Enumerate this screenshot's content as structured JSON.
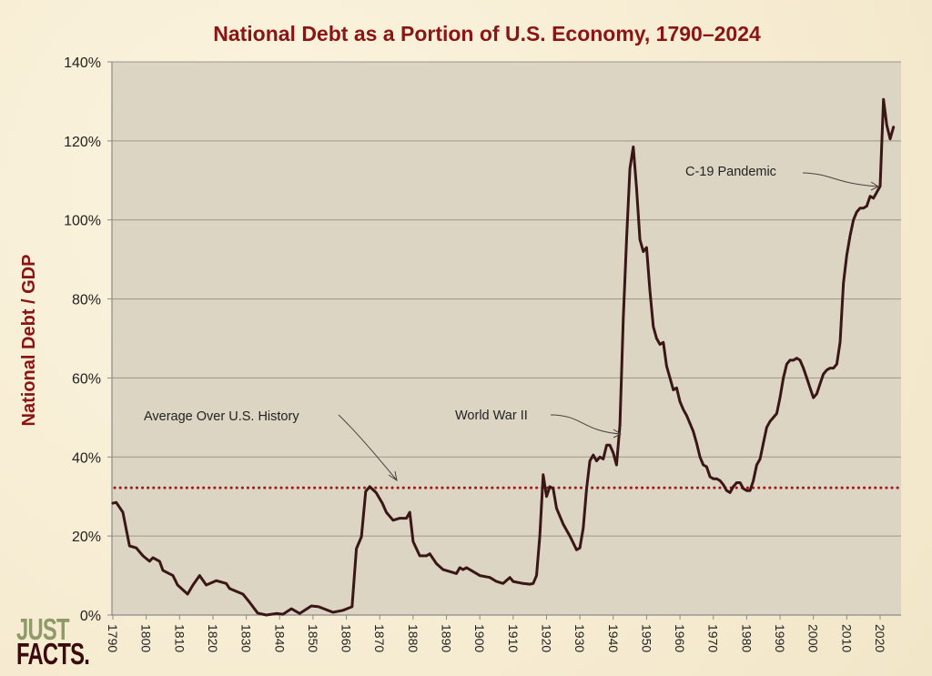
{
  "chart_data": {
    "type": "line",
    "title": "National Debt as a Portion of U.S. Economy, 1790–2024",
    "xlabel": "",
    "ylabel": "National Debt / GDP",
    "xlim": [
      1790,
      2026
    ],
    "ylim": [
      0,
      140
    ],
    "x_ticks": [
      1790,
      1800,
      1810,
      1820,
      1830,
      1840,
      1850,
      1860,
      1870,
      1880,
      1890,
      1900,
      1910,
      1920,
      1930,
      1940,
      1950,
      1960,
      1970,
      1980,
      1990,
      2000,
      2010,
      2020
    ],
    "y_ticks": [
      0,
      20,
      40,
      60,
      80,
      100,
      120,
      140
    ],
    "y_tick_labels": [
      "0%",
      "20%",
      "40%",
      "60%",
      "80%",
      "100%",
      "120%",
      "140%"
    ],
    "grid": "horizontal",
    "average_line": {
      "value": 32.2,
      "label": "Average Over U.S. History",
      "color": "#a01818"
    },
    "annotations": [
      {
        "text": "Average Over U.S. History",
        "points_to_year": 1876,
        "points_to_value": 34
      },
      {
        "text": "World War II",
        "points_to_year": 1941,
        "points_to_value": 45
      },
      {
        "text": "C-19 Pandemic",
        "points_to_year": 2020,
        "points_to_value": 108
      }
    ],
    "series": [
      {
        "color": "#3a1616",
        "points": [
          [
            1790,
            28.3
          ],
          [
            1791,
            28.5
          ],
          [
            1793,
            26
          ],
          [
            1795,
            17.5
          ],
          [
            1797,
            17
          ],
          [
            1799,
            15
          ],
          [
            1801,
            13.6
          ],
          [
            1802,
            14.5
          ],
          [
            1804,
            13.6
          ],
          [
            1805,
            11.3
          ],
          [
            1808,
            10
          ],
          [
            1809.4,
            7.6
          ],
          [
            1812.4,
            5.3
          ],
          [
            1814,
            7.6
          ],
          [
            1816,
            10
          ],
          [
            1818,
            7.6
          ],
          [
            1821,
            8.7
          ],
          [
            1824,
            8
          ],
          [
            1825,
            6.7
          ],
          [
            1829,
            5.3
          ],
          [
            1831,
            3.2
          ],
          [
            1833.4,
            0.5
          ],
          [
            1836,
            0
          ],
          [
            1839,
            0.4
          ],
          [
            1841,
            0.2
          ],
          [
            1843.5,
            1.6
          ],
          [
            1846,
            0.4
          ],
          [
            1849.5,
            2.3
          ],
          [
            1851.7,
            2.1
          ],
          [
            1856,
            0.7
          ],
          [
            1859,
            1.2
          ],
          [
            1861.7,
            2.1
          ],
          [
            1863,
            16.8
          ],
          [
            1864.5,
            19.8
          ],
          [
            1865.8,
            31.3
          ],
          [
            1867,
            32.5
          ],
          [
            1868.9,
            31
          ],
          [
            1870.8,
            28.3
          ],
          [
            1872,
            26
          ],
          [
            1874,
            24
          ],
          [
            1876,
            24.5
          ],
          [
            1878,
            24.5
          ],
          [
            1879,
            26
          ],
          [
            1880,
            18.6
          ],
          [
            1882,
            15
          ],
          [
            1884,
            15
          ],
          [
            1885,
            15.5
          ],
          [
            1887,
            13
          ],
          [
            1889,
            11.5
          ],
          [
            1891,
            11
          ],
          [
            1893,
            10.5
          ],
          [
            1894,
            12
          ],
          [
            1895,
            11.5
          ],
          [
            1896,
            12
          ],
          [
            1898,
            11
          ],
          [
            1900,
            10
          ],
          [
            1903,
            9.5
          ],
          [
            1905,
            8.5
          ],
          [
            1907,
            8
          ],
          [
            1909,
            9.5
          ],
          [
            1910,
            8.5
          ],
          [
            1913,
            8
          ],
          [
            1915,
            7.8
          ],
          [
            1916,
            8
          ],
          [
            1917,
            10
          ],
          [
            1918,
            20
          ],
          [
            1919,
            35.5
          ],
          [
            1920,
            30
          ],
          [
            1921,
            32.5
          ],
          [
            1922,
            32
          ],
          [
            1923,
            27
          ],
          [
            1925,
            23
          ],
          [
            1927,
            20
          ],
          [
            1929,
            16.5
          ],
          [
            1930,
            17
          ],
          [
            1931,
            22
          ],
          [
            1932,
            32
          ],
          [
            1933,
            39
          ],
          [
            1934,
            40.5
          ],
          [
            1935,
            39
          ],
          [
            1936,
            40
          ],
          [
            1937,
            39.5
          ],
          [
            1938,
            43
          ],
          [
            1939,
            43
          ],
          [
            1940,
            41
          ],
          [
            1941,
            38
          ],
          [
            1942,
            48
          ],
          [
            1943,
            75
          ],
          [
            1944,
            95
          ],
          [
            1945,
            113
          ],
          [
            1946,
            118.5
          ],
          [
            1947,
            108
          ],
          [
            1948,
            95
          ],
          [
            1949,
            92
          ],
          [
            1950,
            93
          ],
          [
            1951,
            82
          ],
          [
            1952,
            73
          ],
          [
            1953,
            70
          ],
          [
            1954,
            68.5
          ],
          [
            1955,
            69
          ],
          [
            1956,
            63
          ],
          [
            1957,
            60
          ],
          [
            1958,
            57
          ],
          [
            1959,
            57.5
          ],
          [
            1960,
            54
          ],
          [
            1961,
            52
          ],
          [
            1962,
            50.5
          ],
          [
            1963,
            48.5
          ],
          [
            1964,
            46.5
          ],
          [
            1965,
            43.5
          ],
          [
            1966,
            40
          ],
          [
            1967,
            38
          ],
          [
            1968,
            37.5
          ],
          [
            1969,
            35
          ],
          [
            1970,
            34.5
          ],
          [
            1971,
            34.5
          ],
          [
            1972,
            34
          ],
          [
            1973,
            33
          ],
          [
            1974,
            31.5
          ],
          [
            1975,
            31
          ],
          [
            1976,
            32.5
          ],
          [
            1977,
            33.5
          ],
          [
            1978,
            33.5
          ],
          [
            1979,
            32
          ],
          [
            1980,
            31.5
          ],
          [
            1981,
            31.5
          ],
          [
            1982,
            34
          ],
          [
            1983,
            38
          ],
          [
            1984,
            39.5
          ],
          [
            1985,
            43.5
          ],
          [
            1986,
            47.5
          ],
          [
            1987,
            49
          ],
          [
            1988,
            50
          ],
          [
            1989,
            51
          ],
          [
            1990,
            55
          ],
          [
            1991,
            60
          ],
          [
            1992,
            63.5
          ],
          [
            1993,
            64.5
          ],
          [
            1994,
            64.5
          ],
          [
            1995,
            65
          ],
          [
            1996,
            64.5
          ],
          [
            1997,
            62.5
          ],
          [
            1998,
            60
          ],
          [
            1999,
            57.5
          ],
          [
            2000,
            55
          ],
          [
            2001,
            56
          ],
          [
            2002,
            58.5
          ],
          [
            2003,
            61
          ],
          [
            2004,
            62
          ],
          [
            2005,
            62.5
          ],
          [
            2006,
            62.5
          ],
          [
            2007,
            63.5
          ],
          [
            2008,
            69
          ],
          [
            2009,
            84
          ],
          [
            2010,
            91
          ],
          [
            2011,
            96
          ],
          [
            2012,
            100
          ],
          [
            2013,
            102
          ],
          [
            2014,
            103
          ],
          [
            2015,
            103
          ],
          [
            2016,
            103.5
          ],
          [
            2017,
            106
          ],
          [
            2018,
            105.5
          ],
          [
            2019,
            107
          ],
          [
            2020,
            108.5
          ],
          [
            2021,
            130.5
          ],
          [
            2022,
            124
          ],
          [
            2023,
            120.5
          ],
          [
            2024,
            123.5
          ]
        ]
      }
    ]
  },
  "logo": {
    "line1": "JUST",
    "line2": "FACTS."
  },
  "colors": {
    "title": "#8b1414",
    "plot_bg": "#dcd5c3",
    "line": "#3a1616",
    "average": "#a01818",
    "logo_just": "#8f9a68",
    "logo_facts": "#3a0a0c"
  }
}
